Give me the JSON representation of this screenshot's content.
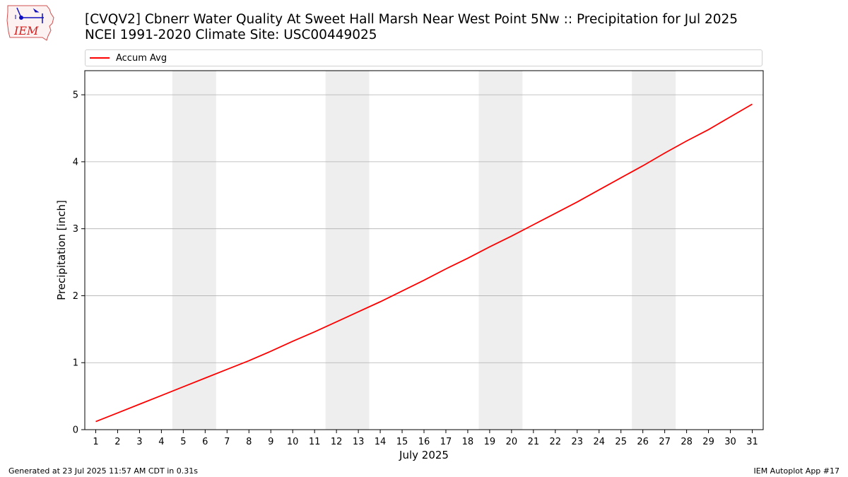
{
  "logo": {
    "text": "IEM"
  },
  "header": {
    "title_line1": "[CVQV2] Cbnerr Water Quality At Sweet Hall Marsh Near West Point 5Nw :: Precipitation for Jul 2025",
    "title_line2": "NCEI 1991-2020 Climate Site: USC00449025"
  },
  "footer": {
    "generated": "Generated at 23 Jul 2025 11:57 AM CDT in 0.31s",
    "app": "IEM Autoplot App #17"
  },
  "colors": {
    "line": "#ff0000",
    "weekend_band": "#eeeeee",
    "grid": "#b0b0b0"
  },
  "chart_data": {
    "type": "line",
    "xlabel": "July 2025",
    "ylabel": "Precipitation [inch]",
    "xlim": [
      0.5,
      31.5
    ],
    "ylim": [
      0,
      5.36
    ],
    "x_ticks": [
      1,
      2,
      3,
      4,
      5,
      6,
      7,
      8,
      9,
      10,
      11,
      12,
      13,
      14,
      15,
      16,
      17,
      18,
      19,
      20,
      21,
      22,
      23,
      24,
      25,
      26,
      27,
      28,
      29,
      30,
      31
    ],
    "y_ticks": [
      0,
      1,
      2,
      3,
      4,
      5
    ],
    "grid": "horizontal",
    "legend_position": "top",
    "shaded_spans": [
      [
        4.5,
        6.5
      ],
      [
        11.5,
        13.5
      ],
      [
        18.5,
        20.5
      ],
      [
        25.5,
        27.5
      ]
    ],
    "series": [
      {
        "name": "Accum Avg",
        "color": "#ff0000",
        "x": [
          1,
          2,
          3,
          4,
          5,
          6,
          7,
          8,
          9,
          10,
          11,
          12,
          13,
          14,
          15,
          16,
          17,
          18,
          19,
          20,
          21,
          22,
          23,
          24,
          25,
          26,
          27,
          28,
          29,
          30,
          31
        ],
        "y": [
          0.12,
          0.25,
          0.38,
          0.51,
          0.64,
          0.77,
          0.9,
          1.03,
          1.17,
          1.32,
          1.46,
          1.61,
          1.76,
          1.91,
          2.07,
          2.23,
          2.4,
          2.56,
          2.73,
          2.89,
          3.06,
          3.23,
          3.4,
          3.58,
          3.76,
          3.94,
          4.13,
          4.31,
          4.48,
          4.67,
          4.86
        ]
      }
    ]
  }
}
